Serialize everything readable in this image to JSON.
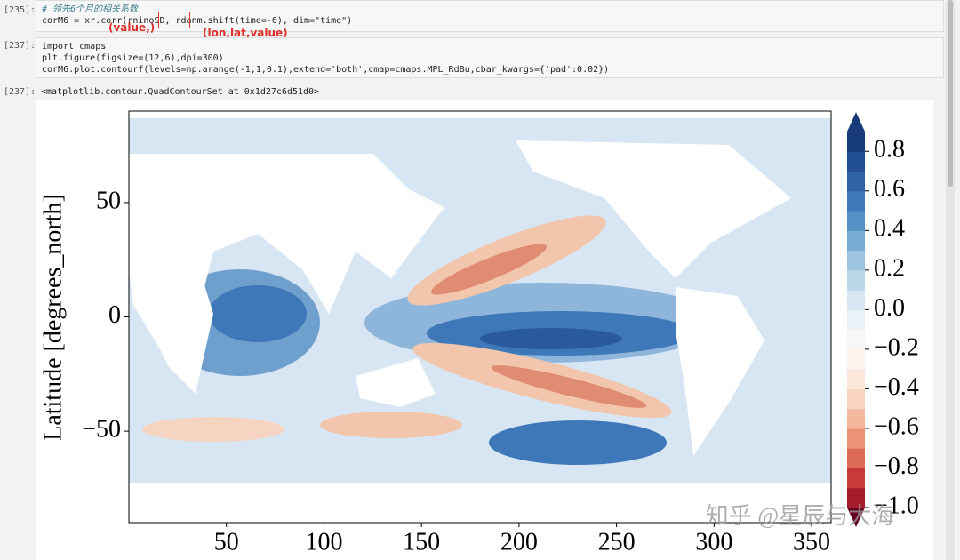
{
  "cells": [
    {
      "prompt": "[235]:",
      "code": [
        "# 领先6个月的相关系数",
        "corM6 = xr.corr(rninoSD, rdanm.shift(time=-6), dim=\"time\")"
      ],
      "annotations": [
        "(value,)",
        "(lon,lat,value)"
      ]
    },
    {
      "prompt": "[237]:",
      "code": [
        "import cmaps",
        "plt.figure(figsize=(12,6),dpi=300)",
        "corM6.plot.contourf(levels=np.arange(-1,1,0.1),extend='both',cmap=cmaps.MPL_RdBu,cbar_kwargs={'pad':0.02})"
      ]
    }
  ],
  "output": {
    "prompt": "[237]:",
    "text": "<matplotlib.contour.QuadContourSet at 0x1d27c6d51d0>"
  },
  "chart_data": {
    "type": "contourf",
    "ylabel": "Latitude [degrees_north]",
    "xlim": [
      0,
      360
    ],
    "xticks": [
      50,
      100,
      150,
      200,
      250,
      300,
      350
    ],
    "ylim": [
      -90,
      90
    ],
    "yticks": [
      {
        "value": -50,
        "label": "−50"
      },
      0,
      50
    ],
    "colorbar": {
      "lim": [
        -1,
        0.9
      ],
      "ticks": [
        0.8,
        0.6,
        0.4,
        0.2,
        {
          "value": 0,
          "label": "0.0"
        },
        {
          "value": -0.2,
          "label": "−0.2"
        },
        {
          "value": -0.4,
          "label": "−0.4"
        },
        {
          "value": -0.6,
          "label": "−0.6"
        },
        {
          "value": -0.8,
          "label": "−0.8"
        },
        {
          "value": -1,
          "label": "−1.0"
        }
      ]
    },
    "watermark": "知乎 @星辰与大海"
  }
}
